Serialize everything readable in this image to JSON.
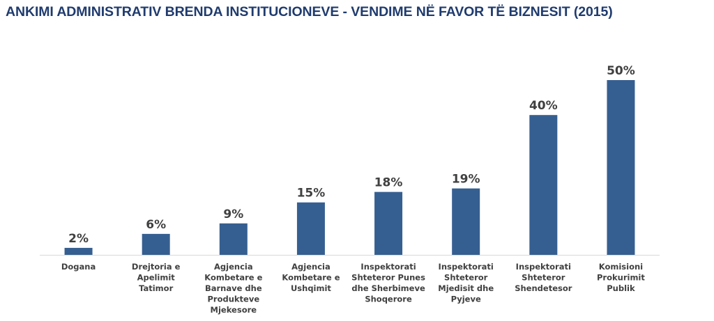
{
  "title": "ANKIMI ADMINISTRATIV BRENDA INSTITUCIONEVE - VENDIME NË FAVOR TË BIZNESIT (2015)",
  "colors": {
    "bar": "#365f91",
    "axis": "#d9d9d9",
    "text": "#404040",
    "title": "#1f3b6e"
  },
  "chart_data": {
    "type": "bar",
    "title": "ANKIMI ADMINISTRATIV BRENDA INSTITUCIONEVE - VENDIME NË FAVOR TË BIZNESIT (2015)",
    "categories": [
      [
        "Dogana"
      ],
      [
        "Drejtoria e",
        "Apelimit",
        "Tatimor"
      ],
      [
        "Agjencia",
        "Kombetare e",
        "Barnave dhe",
        "Produkteve",
        "Mjekesore"
      ],
      [
        "Agjencia",
        "Kombetare e",
        "Ushqimit"
      ],
      [
        "Inspektorati",
        "Shteteror Punes",
        "dhe Sherbimeve",
        "Shoqerore"
      ],
      [
        "Inspektorati",
        "Shteteror",
        "Mjedisit dhe",
        "Pyjeve"
      ],
      [
        "Inspektorati",
        "Shteteror",
        "Shendetesor"
      ],
      [
        "Komisioni",
        "Prokurimit",
        "Publik"
      ]
    ],
    "values": [
      2,
      6,
      9,
      15,
      18,
      19,
      40,
      50
    ],
    "data_labels": [
      "2%",
      "6%",
      "9%",
      "15%",
      "18%",
      "19%",
      "40%",
      "50%"
    ],
    "unit": "%",
    "ylim": [
      0,
      50
    ],
    "grid": false,
    "legend": "none"
  }
}
